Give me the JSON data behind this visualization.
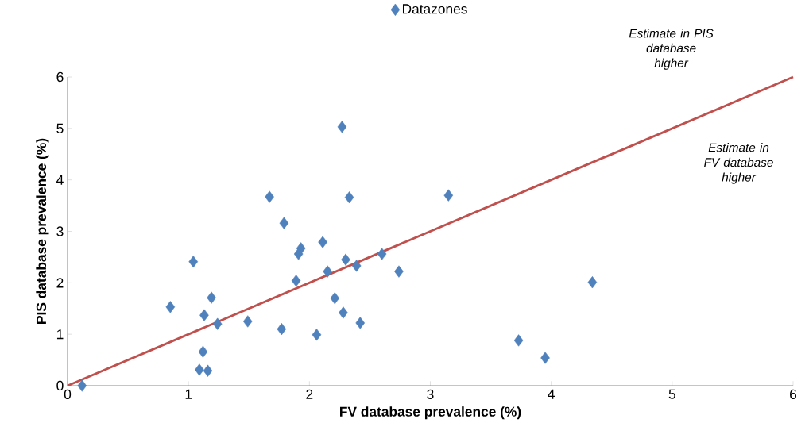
{
  "chart_data": {
    "type": "scatter",
    "xlabel": "FV database prevalence (%)",
    "ylabel": "PIS database prevalence (%)",
    "xlim": [
      0,
      6
    ],
    "ylim": [
      0,
      6
    ],
    "xticks": [
      0,
      1,
      2,
      3,
      4,
      5,
      6
    ],
    "yticks": [
      0,
      1,
      2,
      3,
      4,
      5,
      6
    ],
    "grid": false,
    "legend": "top",
    "marker": "diamond",
    "series": [
      {
        "name": "Datazones",
        "color": "#4f81bd",
        "x": [
          0.12,
          0.85,
          1.04,
          1.13,
          1.19,
          1.12,
          1.09,
          1.16,
          1.24,
          1.49,
          1.67,
          1.77,
          1.79,
          1.93,
          1.91,
          1.89,
          2.06,
          2.11,
          2.15,
          2.21,
          2.27,
          2.28,
          2.3,
          2.33,
          2.39,
          2.42,
          2.6,
          2.74,
          3.15,
          3.73,
          3.95,
          4.34
        ],
        "values": [
          0,
          1.53,
          2.41,
          1.37,
          1.71,
          0.66,
          0.31,
          0.29,
          1.2,
          1.25,
          3.67,
          1.1,
          3.16,
          2.67,
          2.56,
          2.04,
          0.99,
          2.79,
          2.22,
          1.7,
          5.03,
          1.42,
          2.45,
          3.66,
          2.33,
          1.22,
          2.56,
          2.22,
          3.7,
          0.88,
          0.54,
          2.01
        ]
      },
      {
        "type": "line",
        "marker": "none",
        "color": "#c0504d",
        "x": [
          0,
          6
        ],
        "values": [
          0,
          6
        ]
      }
    ],
    "annotations": [
      "Estimate in PIS database higher",
      "Estimate in FV database higher"
    ]
  }
}
